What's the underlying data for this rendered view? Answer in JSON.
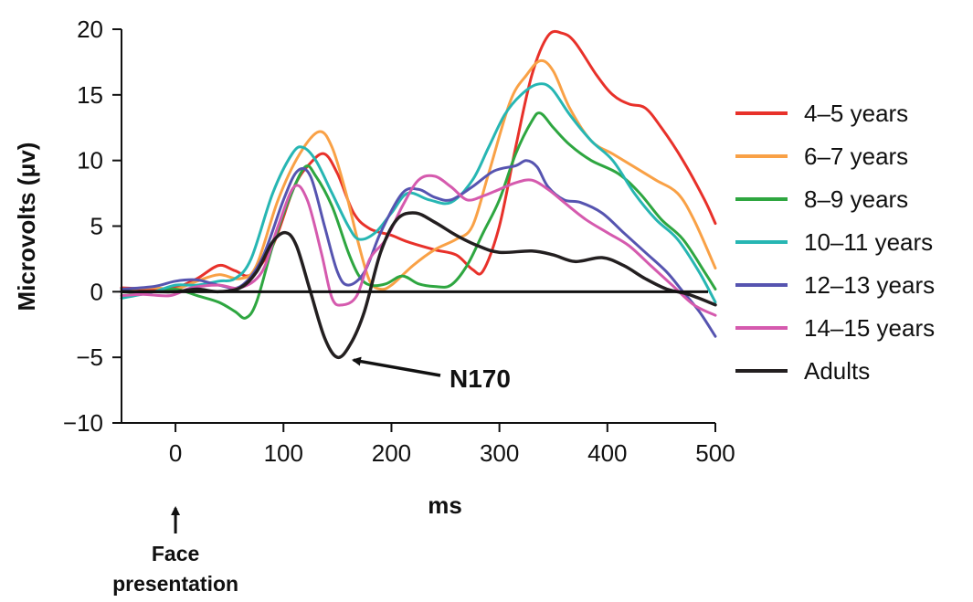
{
  "chart_data": {
    "type": "line",
    "title": "",
    "xlabel": "ms",
    "ylabel": "Microvolts (μv)",
    "xlim": [
      -50,
      500
    ],
    "ylim": [
      -10,
      20
    ],
    "x_ticks": [
      0,
      100,
      200,
      300,
      400,
      500
    ],
    "y_ticks": [
      -10,
      -5,
      0,
      5,
      10,
      15,
      20
    ],
    "x_tick_labels": [
      "0",
      "100",
      "200",
      "300",
      "400",
      "500"
    ],
    "y_tick_labels": [
      "−10",
      "−5",
      "0",
      "5",
      "10",
      "15",
      "20"
    ],
    "zero_line": true,
    "grid": false,
    "legend_position": "right",
    "series": [
      {
        "name": "4–5 years",
        "color": "#e8312a",
        "points": [
          [
            -50,
            0.3
          ],
          [
            -20,
            0.2
          ],
          [
            0,
            0.3
          ],
          [
            20,
            1.0
          ],
          [
            40,
            2.0
          ],
          [
            55,
            1.6
          ],
          [
            70,
            1.3
          ],
          [
            90,
            3.5
          ],
          [
            110,
            8.0
          ],
          [
            125,
            9.8
          ],
          [
            138,
            10.5
          ],
          [
            150,
            9.0
          ],
          [
            165,
            6.0
          ],
          [
            180,
            4.8
          ],
          [
            200,
            4.3
          ],
          [
            215,
            3.8
          ],
          [
            240,
            3.2
          ],
          [
            260,
            2.8
          ],
          [
            275,
            1.7
          ],
          [
            285,
            1.6
          ],
          [
            300,
            5.0
          ],
          [
            315,
            11.0
          ],
          [
            330,
            16.5
          ],
          [
            345,
            19.5
          ],
          [
            358,
            19.7
          ],
          [
            370,
            19.0
          ],
          [
            390,
            16.5
          ],
          [
            405,
            15.0
          ],
          [
            420,
            14.3
          ],
          [
            435,
            14.0
          ],
          [
            450,
            12.5
          ],
          [
            470,
            10.0
          ],
          [
            490,
            7.0
          ],
          [
            500,
            5.2
          ]
        ]
      },
      {
        "name": "6–7 years",
        "color": "#f9a146",
        "points": [
          [
            -50,
            0.2
          ],
          [
            -20,
            0.3
          ],
          [
            0,
            0.2
          ],
          [
            20,
            0.8
          ],
          [
            40,
            1.3
          ],
          [
            60,
            1.0
          ],
          [
            75,
            2.0
          ],
          [
            95,
            7.0
          ],
          [
            115,
            10.5
          ],
          [
            133,
            12.2
          ],
          [
            145,
            11.0
          ],
          [
            158,
            7.5
          ],
          [
            170,
            3.5
          ],
          [
            180,
            0.8
          ],
          [
            190,
            0.2
          ],
          [
            200,
            0.5
          ],
          [
            220,
            2.0
          ],
          [
            240,
            3.2
          ],
          [
            260,
            4.0
          ],
          [
            275,
            5.0
          ],
          [
            290,
            9.0
          ],
          [
            310,
            14.5
          ],
          [
            325,
            16.5
          ],
          [
            338,
            17.6
          ],
          [
            350,
            16.8
          ],
          [
            365,
            14.0
          ],
          [
            385,
            11.5
          ],
          [
            405,
            10.5
          ],
          [
            425,
            9.5
          ],
          [
            445,
            8.5
          ],
          [
            465,
            7.5
          ],
          [
            480,
            5.5
          ],
          [
            500,
            1.8
          ]
        ]
      },
      {
        "name": "8–9 years",
        "color": "#2ea640",
        "points": [
          [
            -50,
            -0.3
          ],
          [
            -20,
            0.0
          ],
          [
            0,
            0.2
          ],
          [
            20,
            -0.3
          ],
          [
            40,
            -0.8
          ],
          [
            55,
            -1.5
          ],
          [
            65,
            -2.0
          ],
          [
            75,
            -0.8
          ],
          [
            90,
            3.5
          ],
          [
            105,
            7.0
          ],
          [
            120,
            9.5
          ],
          [
            130,
            8.8
          ],
          [
            145,
            6.5
          ],
          [
            160,
            3.0
          ],
          [
            170,
            1.2
          ],
          [
            180,
            0.5
          ],
          [
            195,
            0.6
          ],
          [
            210,
            1.2
          ],
          [
            225,
            0.6
          ],
          [
            240,
            0.4
          ],
          [
            255,
            0.5
          ],
          [
            270,
            2.0
          ],
          [
            285,
            4.5
          ],
          [
            300,
            7.0
          ],
          [
            315,
            10.5
          ],
          [
            330,
            13.0
          ],
          [
            338,
            13.6
          ],
          [
            350,
            12.5
          ],
          [
            365,
            11.2
          ],
          [
            385,
            10.0
          ],
          [
            410,
            9.0
          ],
          [
            430,
            7.5
          ],
          [
            450,
            5.5
          ],
          [
            470,
            4.0
          ],
          [
            490,
            1.5
          ],
          [
            500,
            0.2
          ]
        ]
      },
      {
        "name": "10–11 years",
        "color": "#27b6b3",
        "points": [
          [
            -50,
            -0.5
          ],
          [
            -20,
            0.0
          ],
          [
            0,
            0.5
          ],
          [
            20,
            0.5
          ],
          [
            40,
            0.8
          ],
          [
            55,
            1.0
          ],
          [
            70,
            2.5
          ],
          [
            90,
            7.5
          ],
          [
            108,
            10.5
          ],
          [
            118,
            11.0
          ],
          [
            130,
            10.0
          ],
          [
            145,
            7.5
          ],
          [
            160,
            5.0
          ],
          [
            170,
            4.0
          ],
          [
            185,
            4.5
          ],
          [
            200,
            6.0
          ],
          [
            215,
            7.5
          ],
          [
            235,
            7.0
          ],
          [
            255,
            6.8
          ],
          [
            275,
            8.5
          ],
          [
            290,
            11.0
          ],
          [
            305,
            13.5
          ],
          [
            320,
            15.0
          ],
          [
            335,
            15.8
          ],
          [
            348,
            15.5
          ],
          [
            365,
            13.5
          ],
          [
            385,
            11.5
          ],
          [
            405,
            10.0
          ],
          [
            425,
            7.5
          ],
          [
            445,
            5.5
          ],
          [
            465,
            4.0
          ],
          [
            485,
            1.5
          ],
          [
            500,
            -0.8
          ]
        ]
      },
      {
        "name": "12–13 years",
        "color": "#5654b0",
        "points": [
          [
            -50,
            0.2
          ],
          [
            -20,
            0.4
          ],
          [
            0,
            0.8
          ],
          [
            20,
            0.9
          ],
          [
            40,
            0.5
          ],
          [
            60,
            0.4
          ],
          [
            80,
            2.5
          ],
          [
            100,
            7.0
          ],
          [
            113,
            9.2
          ],
          [
            125,
            8.8
          ],
          [
            138,
            5.0
          ],
          [
            150,
            1.5
          ],
          [
            160,
            0.5
          ],
          [
            175,
            1.5
          ],
          [
            190,
            4.5
          ],
          [
            210,
            7.5
          ],
          [
            225,
            7.8
          ],
          [
            240,
            7.2
          ],
          [
            255,
            7.0
          ],
          [
            275,
            8.0
          ],
          [
            295,
            9.2
          ],
          [
            315,
            9.6
          ],
          [
            325,
            10.0
          ],
          [
            335,
            9.5
          ],
          [
            345,
            8.0
          ],
          [
            360,
            7.0
          ],
          [
            375,
            6.8
          ],
          [
            395,
            6.0
          ],
          [
            415,
            4.5
          ],
          [
            435,
            3.0
          ],
          [
            455,
            1.5
          ],
          [
            470,
            0.0
          ],
          [
            485,
            -1.5
          ],
          [
            500,
            -3.4
          ]
        ]
      },
      {
        "name": "14–15 years",
        "color": "#d55aae",
        "points": [
          [
            -50,
            -0.3
          ],
          [
            -30,
            -0.2
          ],
          [
            -5,
            -0.3
          ],
          [
            15,
            0.3
          ],
          [
            40,
            0.5
          ],
          [
            60,
            0.3
          ],
          [
            80,
            1.5
          ],
          [
            95,
            5.0
          ],
          [
            110,
            8.0
          ],
          [
            122,
            7.0
          ],
          [
            135,
            3.0
          ],
          [
            145,
            -0.5
          ],
          [
            155,
            -1.0
          ],
          [
            168,
            -0.3
          ],
          [
            180,
            2.5
          ],
          [
            195,
            4.0
          ],
          [
            210,
            6.5
          ],
          [
            225,
            8.5
          ],
          [
            240,
            8.8
          ],
          [
            255,
            8.0
          ],
          [
            270,
            7.0
          ],
          [
            285,
            7.3
          ],
          [
            300,
            7.8
          ],
          [
            315,
            8.3
          ],
          [
            330,
            8.5
          ],
          [
            345,
            7.8
          ],
          [
            360,
            6.8
          ],
          [
            380,
            5.5
          ],
          [
            400,
            4.5
          ],
          [
            420,
            3.5
          ],
          [
            440,
            2.0
          ],
          [
            460,
            0.5
          ],
          [
            480,
            -1.0
          ],
          [
            500,
            -1.8
          ]
        ]
      },
      {
        "name": "Adults",
        "color": "#231f20",
        "points": [
          [
            -50,
            0.0
          ],
          [
            -20,
            0.0
          ],
          [
            0,
            0.0
          ],
          [
            20,
            0.2
          ],
          [
            40,
            0.0
          ],
          [
            60,
            0.3
          ],
          [
            75,
            1.5
          ],
          [
            90,
            3.8
          ],
          [
            102,
            4.5
          ],
          [
            112,
            3.5
          ],
          [
            125,
            0.0
          ],
          [
            138,
            -3.5
          ],
          [
            150,
            -5.0
          ],
          [
            162,
            -4.0
          ],
          [
            175,
            -1.5
          ],
          [
            190,
            3.0
          ],
          [
            205,
            5.5
          ],
          [
            222,
            6.0
          ],
          [
            240,
            5.3
          ],
          [
            260,
            4.3
          ],
          [
            280,
            3.5
          ],
          [
            300,
            3.0
          ],
          [
            330,
            3.1
          ],
          [
            350,
            2.8
          ],
          [
            370,
            2.3
          ],
          [
            395,
            2.6
          ],
          [
            415,
            2.0
          ],
          [
            435,
            1.0
          ],
          [
            455,
            0.2
          ],
          [
            475,
            -0.2
          ],
          [
            500,
            -1.0
          ]
        ]
      }
    ],
    "annotations": [
      {
        "label": "N170",
        "target": [
          153,
          -5.0
        ]
      },
      {
        "label": "Face presentation",
        "label_lines": [
          "Face",
          "presentation"
        ],
        "target": [
          0,
          -10
        ]
      }
    ]
  }
}
